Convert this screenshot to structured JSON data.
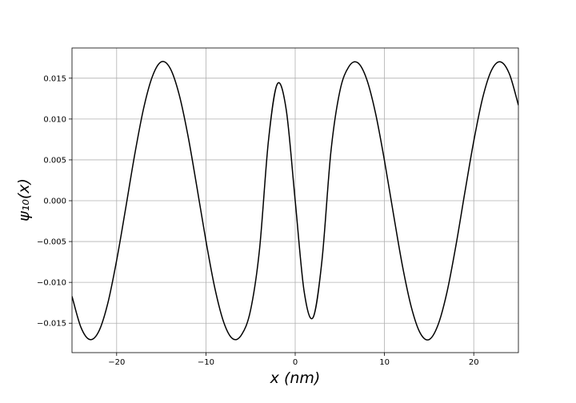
{
  "chart_data": {
    "type": "line",
    "x_label": "x (nm)",
    "y_label": "ψ₁₀(x)",
    "x": [
      -25,
      -24,
      -23,
      -22,
      -21,
      -20,
      -19,
      -18,
      -17,
      -16,
      -15,
      -14,
      -13,
      -12,
      -11,
      -10,
      -9,
      -8,
      -7,
      -6,
      -5,
      -4,
      -3,
      -2,
      -1,
      0,
      1,
      2,
      3,
      4,
      5,
      6,
      7,
      8,
      9,
      10,
      11,
      12,
      13,
      14,
      15,
      16,
      17,
      18,
      19,
      20,
      21,
      22,
      23,
      24,
      25
    ],
    "series": [
      {
        "color": "#000000",
        "values": [
          -0.0117,
          -0.0155,
          -0.017,
          -0.016,
          -0.0126,
          -0.0073,
          -0.001,
          0.0055,
          0.0112,
          0.0152,
          0.017,
          0.0162,
          0.013,
          0.0079,
          0.0016,
          -0.0049,
          -0.0107,
          -0.0149,
          -0.0169,
          -0.0164,
          -0.0134,
          -0.006,
          0.0073,
          0.0143,
          0.0111,
          0,
          -0.0111,
          -0.0143,
          -0.0073,
          0.006,
          0.0134,
          0.0164,
          0.0169,
          0.0149,
          0.0107,
          0.0049,
          -0.0016,
          -0.0079,
          -0.013,
          -0.0162,
          -0.017,
          -0.0152,
          -0.0112,
          -0.0055,
          0.001,
          0.0073,
          0.0126,
          0.016,
          0.017,
          0.0155,
          0.0117
        ]
      }
    ],
    "xlim": [
      -25,
      25
    ],
    "ylim": [
      -0.0186,
      0.0187
    ],
    "xticks": [
      {
        "value": -20,
        "label": "−20"
      },
      {
        "value": -10,
        "label": "−10"
      },
      0,
      10,
      20
    ],
    "yticks": [
      {
        "value": -0.015,
        "label": "−0.015"
      },
      {
        "value": -0.01,
        "label": "−0.010"
      },
      {
        "value": -0.005,
        "label": "−0.005"
      },
      {
        "value": 0,
        "label": "0.000"
      },
      {
        "value": 0.005,
        "label": "0.005"
      },
      {
        "value": 0.01,
        "label": "0.010"
      },
      {
        "value": 0.015,
        "label": "0.015"
      }
    ],
    "grid": true
  }
}
